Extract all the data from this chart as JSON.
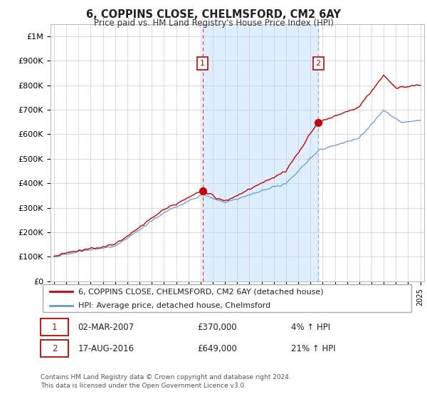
{
  "title": "6, COPPINS CLOSE, CHELMSFORD, CM2 6AY",
  "subtitle": "Price paid vs. HM Land Registry's House Price Index (HPI)",
  "ylabel_ticks": [
    "£0",
    "£100K",
    "£200K",
    "£300K",
    "£400K",
    "£500K",
    "£600K",
    "£700K",
    "£800K",
    "£900K",
    "£1M"
  ],
  "ytick_values": [
    0,
    100000,
    200000,
    300000,
    400000,
    500000,
    600000,
    700000,
    800000,
    900000,
    1000000
  ],
  "ylim": [
    0,
    1050000
  ],
  "xlim_start": 1994.7,
  "xlim_end": 2025.3,
  "sale1_x": 2007.17,
  "sale1_y": 370000,
  "sale2_x": 2016.63,
  "sale2_y": 649000,
  "annotation1_date": "02-MAR-2007",
  "annotation1_price": "£370,000",
  "annotation1_hpi": "4% ↑ HPI",
  "annotation2_date": "17-AUG-2016",
  "annotation2_price": "£649,000",
  "annotation2_hpi": "21% ↑ HPI",
  "legend_line1": "6, COPPINS CLOSE, CHELMSFORD, CM2 6AY (detached house)",
  "legend_line2": "HPI: Average price, detached house, Chelmsford",
  "footer": "Contains HM Land Registry data © Crown copyright and database right 2024.\nThis data is licensed under the Open Government Licence v3.0.",
  "line_color_property": "#cc0000",
  "line_color_hpi": "#6699cc",
  "shade_color": "#ddeeff",
  "background_color": "#ffffff",
  "grid_color": "#cccccc",
  "dashed_line_color_sale1": "#dd4444",
  "dashed_line_color_sale2": "#aaaaaa"
}
